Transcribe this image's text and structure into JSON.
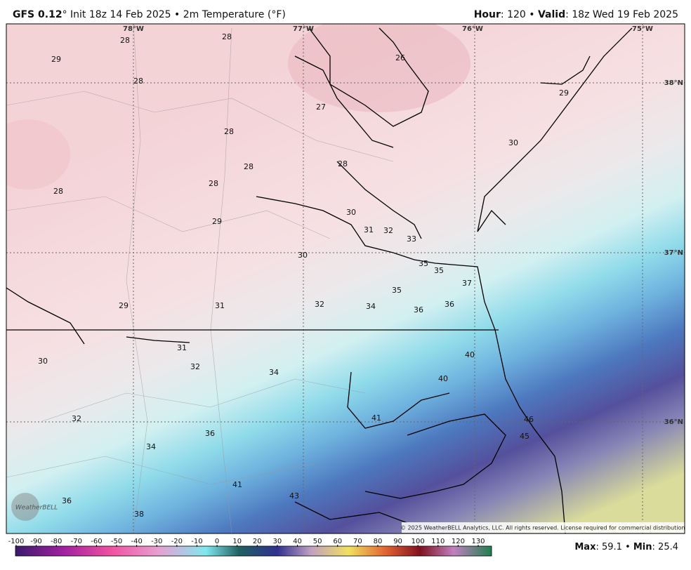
{
  "header": {
    "model": "GFS 0.12",
    "model_rest": "° Init 18z 14 Feb 2025 • 2m Temperature (°F)",
    "hour_label": "Hour",
    "hour_value": ": 120 • ",
    "valid_label": "Valid",
    "valid_value": ": 18z Wed 19 Feb 2025"
  },
  "map": {
    "longitudes": [
      "78°W",
      "77°W",
      "76°W",
      "75°W"
    ],
    "latitudes": [
      "38°N",
      "37°N",
      "36°N"
    ],
    "labels": [
      28,
      28,
      29,
      28,
      26,
      27,
      28,
      28,
      28,
      28,
      28,
      30,
      29,
      31,
      32,
      33,
      30,
      35,
      35,
      37,
      35,
      29,
      31,
      32,
      34,
      36,
      36,
      31,
      40,
      30,
      32,
      34,
      40,
      32,
      41,
      46,
      36,
      45,
      34,
      41,
      43,
      36,
      38,
      29,
      30
    ],
    "copyright": "© 2025 WeatherBELL Analytics, LLC. All rights reserved. License required for commercial distribution.",
    "logo": "WeatherBELL"
  },
  "colorbar": {
    "ticks": [
      -100,
      -90,
      -80,
      -70,
      -60,
      -50,
      -40,
      -30,
      -20,
      -10,
      0,
      10,
      20,
      30,
      40,
      50,
      60,
      70,
      80,
      90,
      100,
      110,
      120,
      130
    ]
  },
  "stats": {
    "max_label": "Max",
    "max_value": 59.1,
    "separator": " • ",
    "min_label": "Min",
    "min_value": 25.4
  }
}
